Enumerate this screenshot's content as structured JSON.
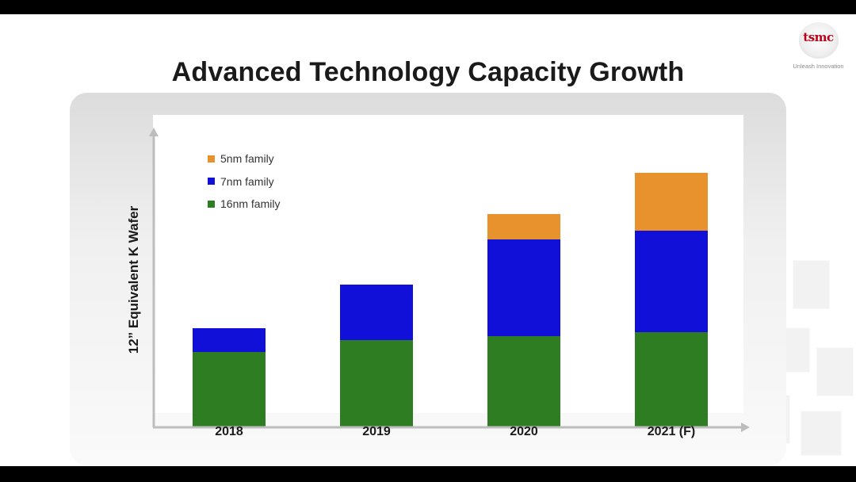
{
  "chart_data": {
    "type": "bar",
    "stacked": true,
    "title": "Advanced Technology Capacity Growth",
    "xlabel": "",
    "ylabel": "12”  Equivalent K Wafer",
    "categories": [
      "2018",
      "2019",
      "2020",
      "2021 (F)"
    ],
    "series": [
      {
        "name": "16nm family",
        "color": "#2e7d22",
        "values": [
          95,
          110,
          115,
          120
        ]
      },
      {
        "name": "7nm family",
        "color": "#1010d8",
        "values": [
          30,
          70,
          122,
          128
        ]
      },
      {
        "name": "5nm family",
        "color": "#e8922e",
        "values": [
          0,
          0,
          32,
          73
        ]
      }
    ],
    "legend_order": [
      "5nm family",
      "7nm family",
      "16nm family"
    ],
    "ylim": [
      0,
      380
    ],
    "grid": false,
    "legend_position": "top-left"
  },
  "brand": {
    "logo_text": "tsmc",
    "tagline": "Unleash Innovation",
    "logo_color": "#c00018"
  }
}
